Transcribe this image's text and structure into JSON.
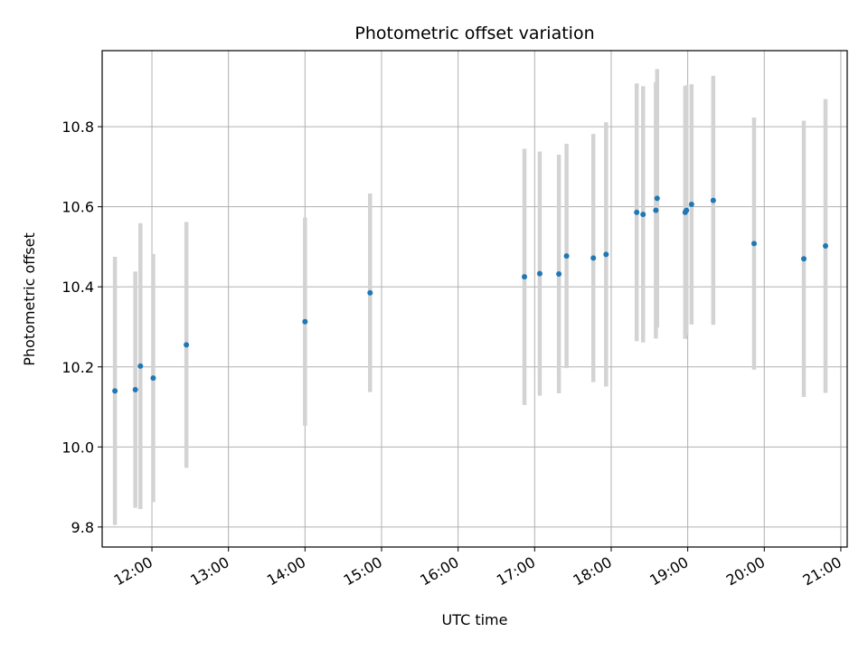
{
  "chart_data": {
    "type": "scatter",
    "title": "Photometric offset variation",
    "xlabel": "UTC time",
    "ylabel": "Photometric offset",
    "x_ticks": [
      "12:00",
      "13:00",
      "14:00",
      "15:00",
      "16:00",
      "17:00",
      "18:00",
      "19:00",
      "20:00",
      "21:00"
    ],
    "y_ticks": [
      "9.8",
      "10.0",
      "10.2",
      "10.4",
      "10.6",
      "10.8"
    ],
    "xlim": [
      "11:21",
      "21:05"
    ],
    "ylim": [
      9.75,
      10.99
    ],
    "grid": true,
    "point_color": "#1f77b4",
    "errorbar_color": "#d3d3d3",
    "points": [
      {
        "x": "11:31",
        "y": 10.14,
        "err": 0.335
      },
      {
        "x": "11:47",
        "y": 10.143,
        "err": 0.295
      },
      {
        "x": "11:51",
        "y": 10.202,
        "err": 0.357
      },
      {
        "x": "12:01",
        "y": 10.172,
        "err": 0.31
      },
      {
        "x": "12:27",
        "y": 10.255,
        "err": 0.307
      },
      {
        "x": "14:00",
        "y": 10.313,
        "err": 0.26
      },
      {
        "x": "14:51",
        "y": 10.385,
        "err": 0.248
      },
      {
        "x": "16:52",
        "y": 10.425,
        "err": 0.32
      },
      {
        "x": "17:04",
        "y": 10.433,
        "err": 0.305
      },
      {
        "x": "17:19",
        "y": 10.432,
        "err": 0.298
      },
      {
        "x": "17:25",
        "y": 10.477,
        "err": 0.28
      },
      {
        "x": "17:46",
        "y": 10.472,
        "err": 0.31
      },
      {
        "x": "17:56",
        "y": 10.481,
        "err": 0.33
      },
      {
        "x": "18:20",
        "y": 10.586,
        "err": 0.322
      },
      {
        "x": "18:25",
        "y": 10.581,
        "err": 0.32
      },
      {
        "x": "18:35",
        "y": 10.591,
        "err": 0.32
      },
      {
        "x": "18:36",
        "y": 10.621,
        "err": 0.323
      },
      {
        "x": "18:58",
        "y": 10.586,
        "err": 0.316
      },
      {
        "x": "18:59",
        "y": 10.591,
        "err": 0.312
      },
      {
        "x": "19:03",
        "y": 10.606,
        "err": 0.3
      },
      {
        "x": "19:20",
        "y": 10.616,
        "err": 0.311
      },
      {
        "x": "19:52",
        "y": 10.508,
        "err": 0.315
      },
      {
        "x": "20:31",
        "y": 10.47,
        "err": 0.345
      },
      {
        "x": "20:48",
        "y": 10.502,
        "err": 0.367
      }
    ]
  }
}
